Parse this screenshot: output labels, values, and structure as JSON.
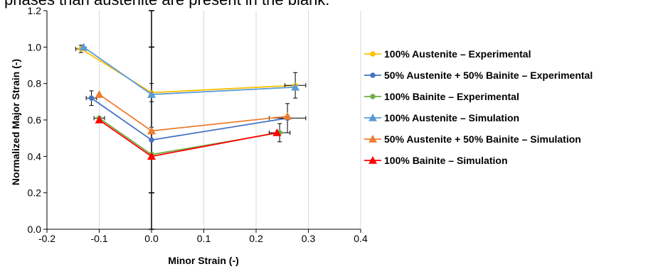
{
  "caption": "phases than austenite are present in the blank.",
  "colors": {
    "austenite_exp": "#FFC000",
    "mixed_exp": "#4472C4",
    "bainite_exp": "#70AD47",
    "austenite_sim": "#5B9BD5",
    "mixed_sim": "#ED7D31",
    "bainite_sim": "#FF0000",
    "grid": "#D9D9D9",
    "axis": "#000000"
  },
  "chart_data": {
    "type": "scatter",
    "xlabel": "Minor Strain (-)",
    "ylabel": "Normalized Major Strain (-)",
    "xlim": [
      -0.2,
      0.4
    ],
    "ylim": [
      0.0,
      1.2
    ],
    "xticks": [
      -0.2,
      -0.1,
      0.0,
      0.1,
      0.2,
      0.3,
      0.4
    ],
    "yticks": [
      0.0,
      0.2,
      0.4,
      0.6,
      0.8,
      1.0,
      1.2
    ],
    "xtick_labels": [
      "-0.2",
      "-0.1",
      "0.0",
      "0.1",
      "0.2",
      "0.3",
      "0.4"
    ],
    "ytick_labels": [
      "0.0",
      "0.2",
      "0.4",
      "0.6",
      "0.8",
      "1.0",
      "1.2"
    ],
    "grid": "vertical",
    "legend_position": "right",
    "series": [
      {
        "name": "100% Austenite – Experimental",
        "marker": "circle",
        "color": "#FFC000",
        "x": [
          -0.135,
          0.0,
          0.275
        ],
        "y": [
          0.99,
          0.75,
          0.79
        ],
        "xerr": [
          0.01,
          0.0,
          0.02
        ],
        "yerr": [
          0.02,
          0.05,
          0.07
        ]
      },
      {
        "name": "50% Austenite + 50% Bainite – Experimental",
        "marker": "circle",
        "color": "#4472C4",
        "x": [
          -0.115,
          0.0,
          0.26
        ],
        "y": [
          0.72,
          0.49,
          0.61
        ],
        "xerr": [
          0.01,
          0.0,
          0.035
        ],
        "yerr": [
          0.04,
          0.07,
          0.08
        ]
      },
      {
        "name": "100% Bainite – Experimental",
        "marker": "circle",
        "color": "#70AD47",
        "x": [
          -0.1,
          0.0,
          0.245
        ],
        "y": [
          0.61,
          0.41,
          0.53
        ],
        "xerr": [
          0.01,
          0.0,
          0.02
        ],
        "yerr": [
          0.0,
          0.0,
          0.05
        ]
      },
      {
        "name": "100% Austenite – Simulation",
        "marker": "triangle",
        "color": "#5B9BD5",
        "x": [
          -0.13,
          0.0,
          0.275
        ],
        "y": [
          1.0,
          0.74,
          0.78
        ],
        "xerr": [
          0.0,
          0.0,
          0.0
        ],
        "yerr": [
          0.0,
          0.0,
          0.0
        ]
      },
      {
        "name": "50% Austenite + 50% Bainite – Simulation",
        "marker": "triangle",
        "color": "#ED7D31",
        "x": [
          -0.1,
          0.0,
          0.26
        ],
        "y": [
          0.74,
          0.54,
          0.62
        ],
        "xerr": [
          0.0,
          0.0,
          0.0
        ],
        "yerr": [
          0.0,
          0.0,
          0.0
        ]
      },
      {
        "name": "100% Bainite – Simulation",
        "marker": "triangle",
        "color": "#FF0000",
        "x": [
          -0.1,
          0.0,
          0.24
        ],
        "y": [
          0.6,
          0.4,
          0.53
        ],
        "xerr": [
          0.0,
          0.0,
          0.0
        ],
        "yerr": [
          0.0,
          0.0,
          0.0
        ]
      }
    ]
  },
  "center_errorbar": {
    "x": 0.0,
    "y": 0.6,
    "yerr": 0.6
  }
}
